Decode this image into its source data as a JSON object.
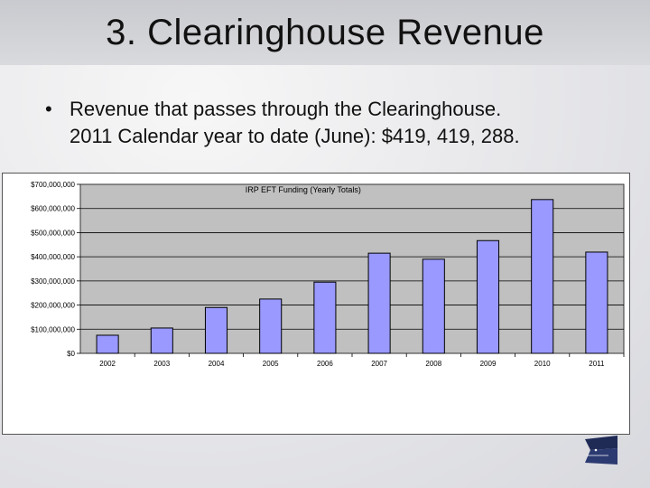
{
  "slide": {
    "title": "3. Clearinghouse Revenue",
    "bullet_symbol": "•",
    "bullet_lines": [
      "Revenue that passes through the Clearinghouse.",
      "2011 Calendar year to date (June): $419, 419, 288."
    ]
  },
  "chart_data": {
    "type": "bar",
    "title": "IRP EFT Funding (Yearly Totals)",
    "categories": [
      "2002",
      "2003",
      "2004",
      "2005",
      "2006",
      "2007",
      "2008",
      "2009",
      "2010",
      "2011"
    ],
    "values": [
      75000000,
      105000000,
      190000000,
      225000000,
      295000000,
      415000000,
      390000000,
      467000000,
      637000000,
      419419288
    ],
    "ylim": [
      0,
      700000000
    ],
    "yticks": [
      0,
      100000000,
      200000000,
      300000000,
      400000000,
      500000000,
      600000000,
      700000000
    ],
    "ytick_labels": [
      "$0",
      "$100,000,000",
      "$200,000,000",
      "$300,000,000",
      "$400,000,000",
      "$500,000,000",
      "$600,000,000",
      "$700,000,000"
    ],
    "grid": true,
    "colors": {
      "bar": "#9999ff",
      "plot_area": "#c0c0c0"
    }
  }
}
